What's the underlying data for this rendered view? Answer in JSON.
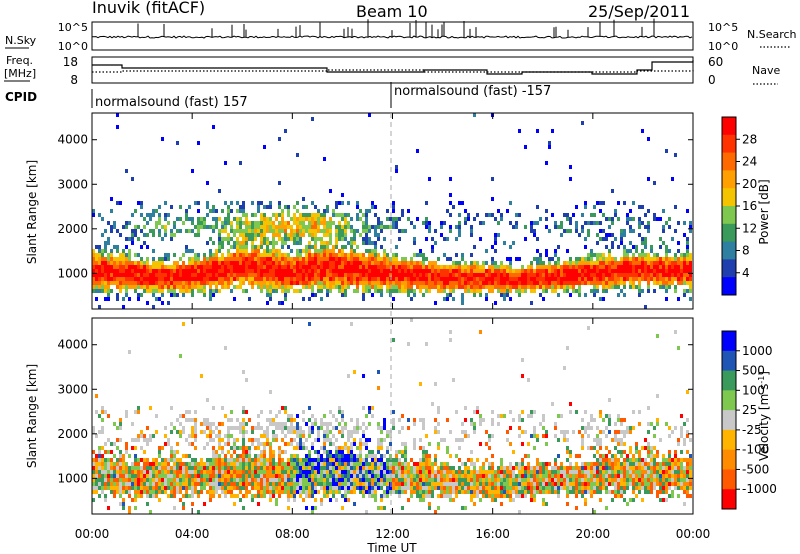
{
  "header": {
    "title": "Inuvik (fitACF)",
    "beam": "Beam 10",
    "date": "25/Sep/2011"
  },
  "strips": {
    "nsky_label": "N.Sky",
    "nsky_ticks": [
      "10^5",
      "10^0"
    ],
    "nsearch_label": "N.Search",
    "nsearch_ticks": [
      "10^5",
      "10^0"
    ],
    "freq_label": "Freq.",
    "freq_unit": "[MHz]",
    "freq_ticks": [
      "18",
      "8"
    ],
    "nave_label": "Nave",
    "nave_ticks": [
      "60",
      "0"
    ],
    "cpid_label": "CPID",
    "cpid_segments": [
      "normalsound (fast) 157",
      "normalsound (fast) -157"
    ]
  },
  "chart_data": [
    {
      "type": "heatmap",
      "ylabel": "Slant Range [km]",
      "xlabel": "Time UT",
      "xticks": [
        "00:00",
        "04:00",
        "08:00",
        "12:00",
        "16:00",
        "20:00",
        "00:00"
      ],
      "yticks": [
        "1000",
        "2000",
        "3000",
        "4000"
      ],
      "ylim": [
        200,
        4600
      ],
      "colorbar": {
        "label": "Power [dB]",
        "ticks": [
          "28",
          "24",
          "20",
          "16",
          "12",
          "8",
          "4"
        ],
        "colors": [
          "#0000ff",
          "#1f3fae",
          "#2f7fa0",
          "#3a9a5c",
          "#7ec850",
          "#f5c400",
          "#ff9f00",
          "#ff6a00",
          "#ff3300",
          "#ff0000"
        ]
      },
      "profile": [
        [
          0,
          1050,
          680,
          2
        ],
        [
          1,
          1000,
          650,
          3
        ],
        [
          2,
          950,
          600,
          4
        ],
        [
          3,
          900,
          580,
          5
        ],
        [
          4,
          980,
          640,
          4
        ],
        [
          5,
          1050,
          700,
          5
        ],
        [
          6,
          1150,
          760,
          6
        ],
        [
          7,
          1100,
          760,
          7
        ],
        [
          8,
          1000,
          720,
          8
        ],
        [
          9,
          1150,
          800,
          7
        ],
        [
          10,
          1100,
          780,
          5
        ],
        [
          11,
          1050,
          720,
          4
        ],
        [
          12,
          1000,
          650,
          3
        ],
        [
          13,
          950,
          600,
          2
        ],
        [
          14,
          900,
          560,
          2
        ],
        [
          15,
          900,
          540,
          2
        ],
        [
          16,
          880,
          500,
          2
        ],
        [
          17,
          860,
          480,
          2
        ],
        [
          18,
          900,
          500,
          2
        ],
        [
          19,
          950,
          560,
          3
        ],
        [
          20,
          1000,
          600,
          3
        ],
        [
          21,
          1050,
          620,
          3
        ],
        [
          22,
          1100,
          620,
          3
        ],
        [
          23,
          1050,
          600,
          2
        ]
      ]
    },
    {
      "type": "heatmap",
      "ylabel": "Slant Range [km]",
      "xlabel": "Time UT",
      "xticks": [
        "00:00",
        "04:00",
        "08:00",
        "12:00",
        "16:00",
        "20:00",
        "00:00"
      ],
      "yticks": [
        "1000",
        "2000",
        "3000",
        "4000"
      ],
      "ylim": [
        200,
        4600
      ],
      "colorbar": {
        "label": "Velocity [m s",
        "label_exp": "-1",
        "label_close": "]",
        "ticks": [
          "1000",
          "500",
          "100",
          "25",
          "-25",
          "-100",
          "-500",
          "-1000"
        ],
        "colors": [
          "#ff0000",
          "#ff5a00",
          "#ff8c00",
          "#ffb400",
          "#c8c8c8",
          "#7ec850",
          "#3a9a5c",
          "#1f55b4",
          "#0000ff"
        ]
      },
      "profile": [
        [
          0,
          1100,
          700,
          2
        ],
        [
          1,
          1050,
          680,
          3
        ],
        [
          2,
          1000,
          640,
          3
        ],
        [
          3,
          1000,
          620,
          3
        ],
        [
          4,
          1050,
          660,
          4
        ],
        [
          5,
          1100,
          700,
          4
        ],
        [
          6,
          1150,
          720,
          4
        ],
        [
          7,
          1100,
          720,
          5
        ],
        [
          8,
          1050,
          700,
          5
        ],
        [
          9,
          1150,
          760,
          5
        ],
        [
          10,
          1150,
          760,
          4
        ],
        [
          11,
          1100,
          720,
          3
        ],
        [
          12,
          1050,
          680,
          3
        ],
        [
          13,
          1000,
          640,
          2
        ],
        [
          14,
          950,
          600,
          2
        ],
        [
          15,
          950,
          580,
          2
        ],
        [
          16,
          900,
          560,
          2
        ],
        [
          17,
          900,
          540,
          2
        ],
        [
          18,
          950,
          560,
          3
        ],
        [
          19,
          1000,
          600,
          3
        ],
        [
          20,
          1050,
          620,
          3
        ],
        [
          21,
          1100,
          640,
          3
        ],
        [
          22,
          1100,
          640,
          3
        ],
        [
          23,
          1050,
          620,
          2
        ]
      ]
    }
  ]
}
